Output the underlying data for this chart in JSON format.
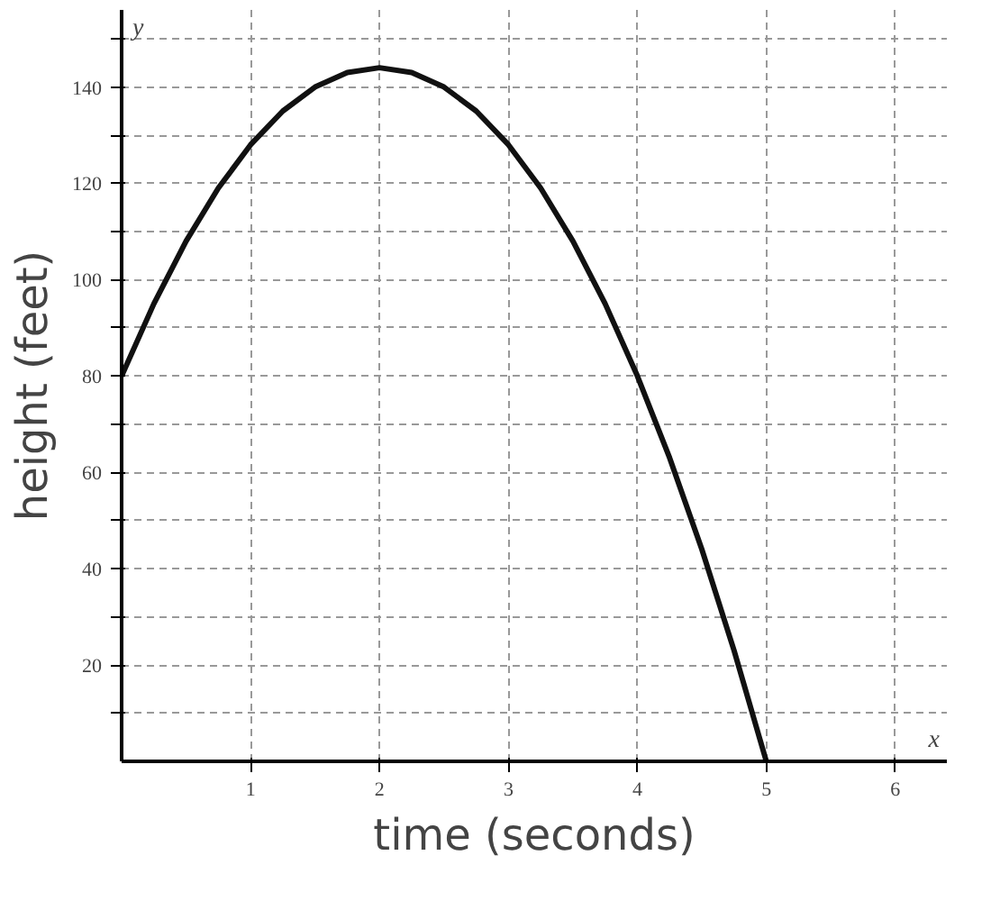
{
  "chart_data": {
    "type": "line",
    "xlabel": "time (seconds)",
    "ylabel": "height (feet)",
    "annotations": [
      "y",
      "x"
    ],
    "x": [
      0,
      0.25,
      0.5,
      0.75,
      1,
      1.25,
      1.5,
      1.75,
      2,
      2.25,
      2.5,
      2.75,
      3,
      3.25,
      3.5,
      3.75,
      4,
      4.25,
      4.5,
      4.75,
      5
    ],
    "series": [
      {
        "color": "#111111",
        "values": [
          80,
          95,
          108,
          119,
          128,
          135,
          140,
          143,
          144,
          143,
          140,
          135,
          128,
          119,
          108,
          95,
          80,
          63,
          44,
          23,
          0
        ]
      }
    ],
    "xlim": [
      0,
      6.4
    ],
    "ylim": [
      0,
      156
    ],
    "xticks": [
      1,
      2,
      3,
      4,
      5,
      6
    ],
    "yticks": [
      {
        "value": 10,
        "label": null
      },
      20,
      {
        "value": 30,
        "label": null
      },
      40,
      {
        "value": 50,
        "label": null
      },
      60,
      {
        "value": 70,
        "label": null
      },
      80,
      {
        "value": 90,
        "label": null
      },
      100,
      {
        "value": 110,
        "label": null
      },
      120,
      {
        "value": 130,
        "label": null
      },
      140,
      {
        "value": 150,
        "label": null
      }
    ],
    "grid": true,
    "marker": "none",
    "line_style": "solid"
  }
}
